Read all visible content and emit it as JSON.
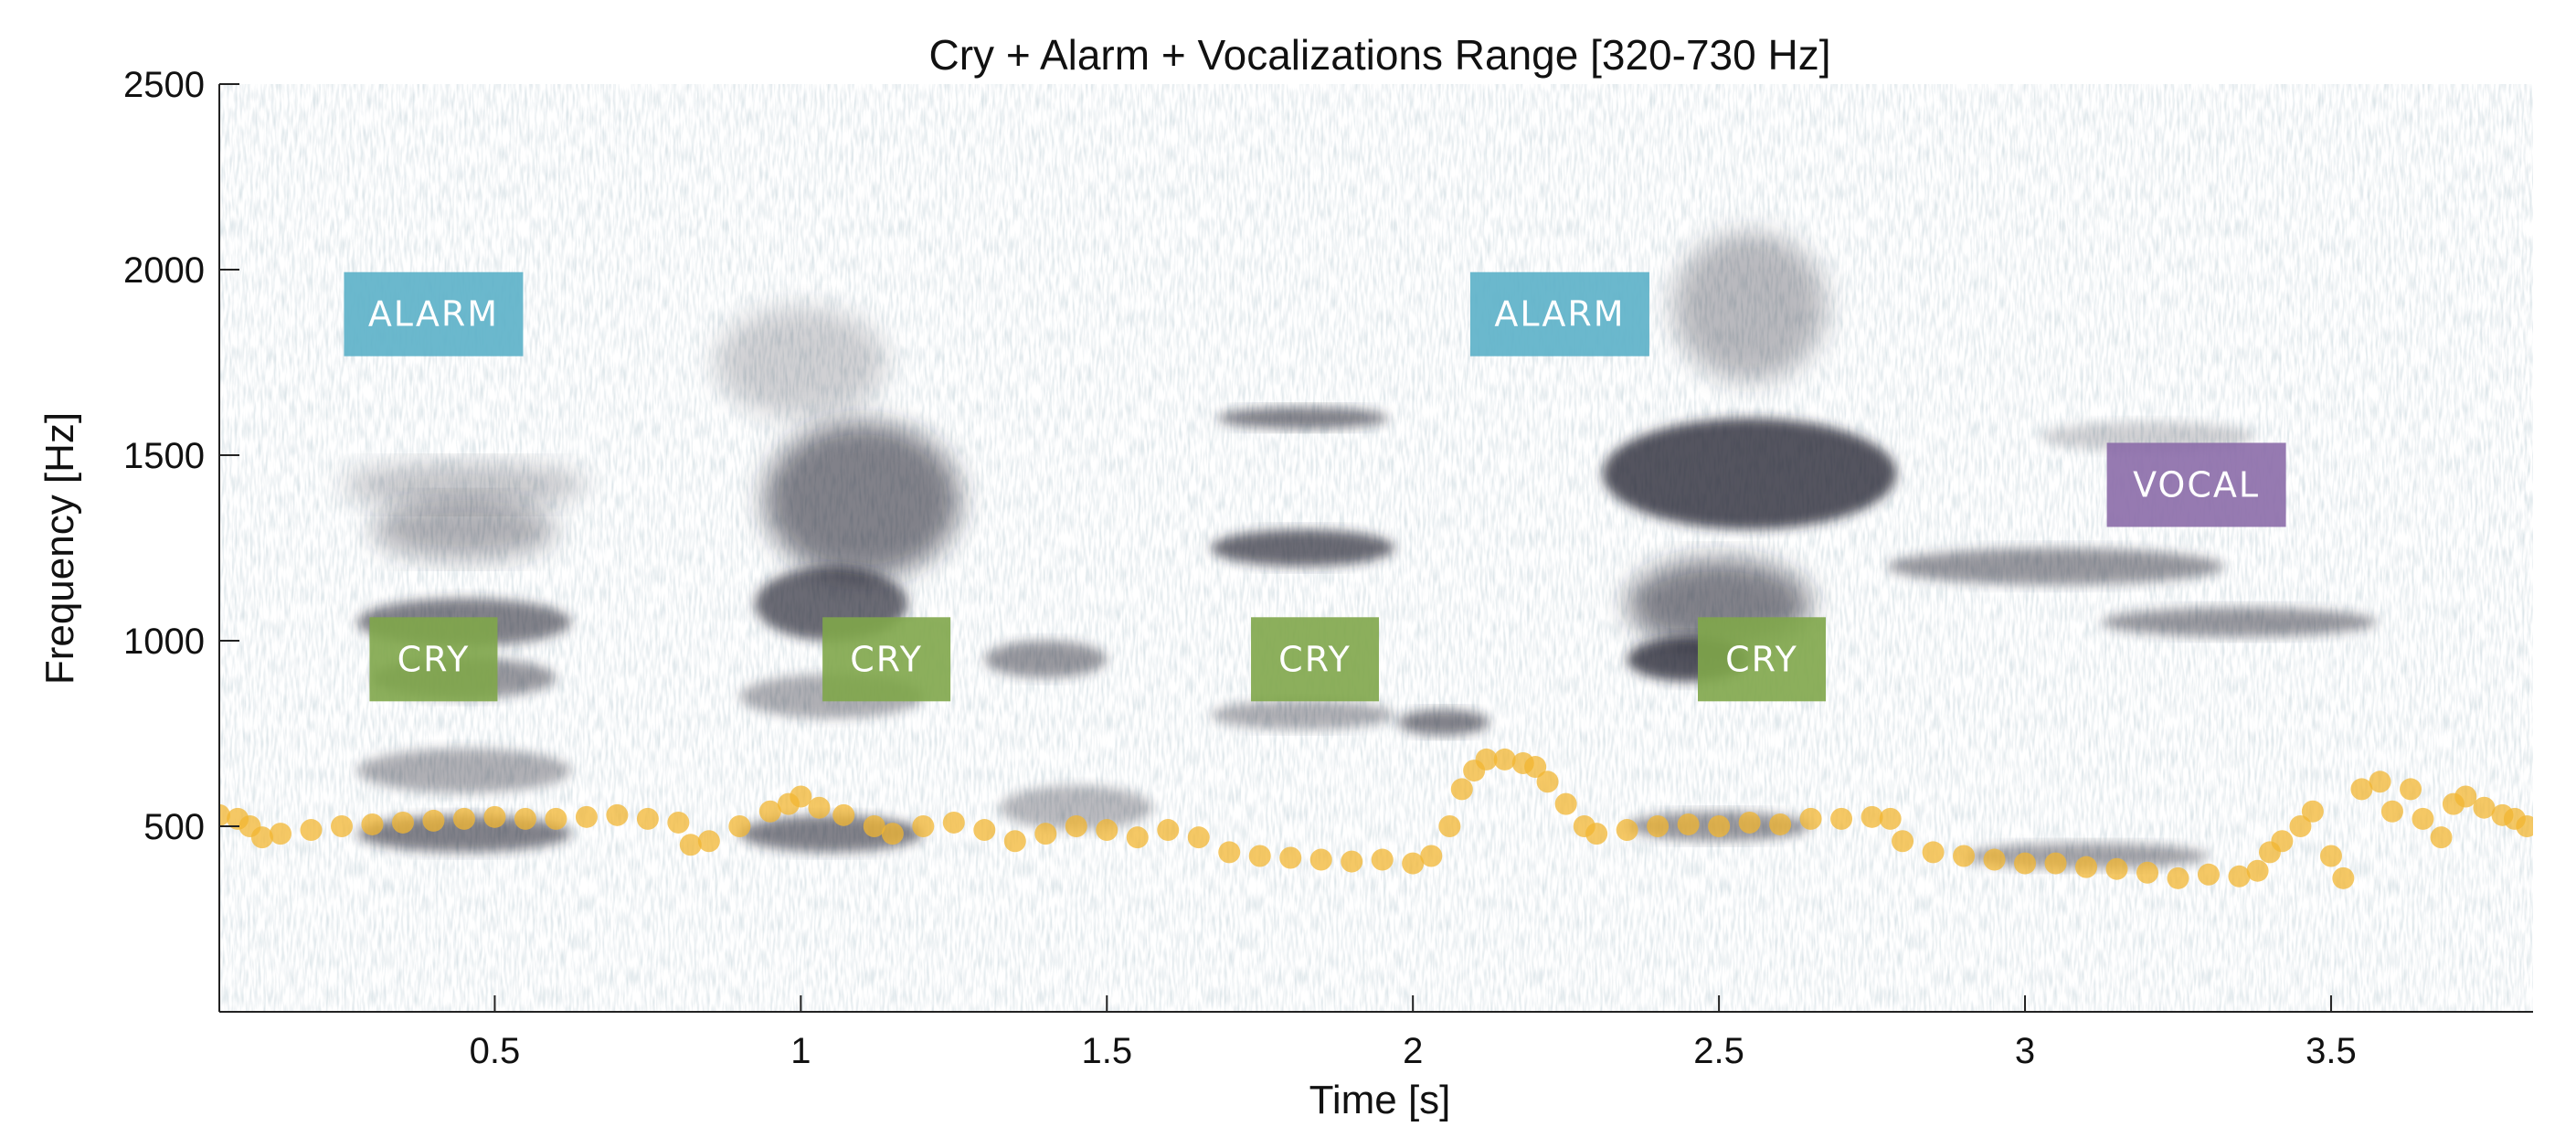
{
  "chart_data": {
    "type": "scatter",
    "title": "Cry + Alarm + Vocalizations Range [320-730 Hz]",
    "xlabel": "Time [s]",
    "ylabel": "Frequency [Hz]",
    "xlim": [
      0.05,
      3.83
    ],
    "ylim": [
      0,
      2500
    ],
    "x_ticks": [
      0.5,
      1,
      1.5,
      2,
      2.5,
      3,
      3.5
    ],
    "x_tick_labels": [
      "0.5",
      "1",
      "1.5",
      "2",
      "2.5",
      "3",
      "3.5"
    ],
    "y_ticks": [
      500,
      1000,
      1500,
      2000,
      2500
    ],
    "y_tick_labels": [
      "500",
      "1000",
      "1500",
      "2000",
      "2500"
    ],
    "background": "spectrogram (grayscale-blue)",
    "series": [
      {
        "color": "#f2b632",
        "points": [
          [
            0.05,
            530
          ],
          [
            0.08,
            520
          ],
          [
            0.1,
            500
          ],
          [
            0.12,
            470
          ],
          [
            0.15,
            480
          ],
          [
            0.2,
            490
          ],
          [
            0.25,
            500
          ],
          [
            0.3,
            505
          ],
          [
            0.35,
            510
          ],
          [
            0.4,
            515
          ],
          [
            0.45,
            520
          ],
          [
            0.5,
            525
          ],
          [
            0.55,
            520
          ],
          [
            0.6,
            520
          ],
          [
            0.65,
            525
          ],
          [
            0.7,
            530
          ],
          [
            0.75,
            520
          ],
          [
            0.8,
            510
          ],
          [
            0.82,
            450
          ],
          [
            0.85,
            460
          ],
          [
            0.9,
            500
          ],
          [
            0.95,
            540
          ],
          [
            0.98,
            560
          ],
          [
            1.0,
            580
          ],
          [
            1.03,
            550
          ],
          [
            1.07,
            530
          ],
          [
            1.12,
            500
          ],
          [
            1.15,
            480
          ],
          [
            1.2,
            500
          ],
          [
            1.25,
            510
          ],
          [
            1.3,
            490
          ],
          [
            1.35,
            460
          ],
          [
            1.4,
            480
          ],
          [
            1.45,
            500
          ],
          [
            1.5,
            490
          ],
          [
            1.55,
            470
          ],
          [
            1.6,
            490
          ],
          [
            1.65,
            470
          ],
          [
            1.7,
            430
          ],
          [
            1.75,
            420
          ],
          [
            1.8,
            415
          ],
          [
            1.85,
            410
          ],
          [
            1.9,
            405
          ],
          [
            1.95,
            410
          ],
          [
            2.0,
            400
          ],
          [
            2.03,
            420
          ],
          [
            2.06,
            500
          ],
          [
            2.08,
            600
          ],
          [
            2.1,
            650
          ],
          [
            2.12,
            680
          ],
          [
            2.15,
            680
          ],
          [
            2.18,
            670
          ],
          [
            2.2,
            660
          ],
          [
            2.22,
            620
          ],
          [
            2.25,
            560
          ],
          [
            2.28,
            500
          ],
          [
            2.3,
            480
          ],
          [
            2.35,
            490
          ],
          [
            2.4,
            500
          ],
          [
            2.45,
            505
          ],
          [
            2.5,
            500
          ],
          [
            2.55,
            510
          ],
          [
            2.6,
            505
          ],
          [
            2.65,
            520
          ],
          [
            2.7,
            520
          ],
          [
            2.75,
            525
          ],
          [
            2.78,
            520
          ],
          [
            2.8,
            460
          ],
          [
            2.85,
            430
          ],
          [
            2.9,
            420
          ],
          [
            2.95,
            410
          ],
          [
            3.0,
            400
          ],
          [
            3.05,
            400
          ],
          [
            3.1,
            390
          ],
          [
            3.15,
            385
          ],
          [
            3.2,
            375
          ],
          [
            3.25,
            360
          ],
          [
            3.3,
            370
          ],
          [
            3.35,
            365
          ],
          [
            3.38,
            380
          ],
          [
            3.4,
            430
          ],
          [
            3.42,
            460
          ],
          [
            3.45,
            500
          ],
          [
            3.47,
            540
          ],
          [
            3.5,
            420
          ],
          [
            3.52,
            360
          ],
          [
            3.55,
            600
          ],
          [
            3.58,
            620
          ],
          [
            3.6,
            540
          ],
          [
            3.63,
            600
          ],
          [
            3.65,
            520
          ],
          [
            3.68,
            470
          ],
          [
            3.7,
            560
          ],
          [
            3.72,
            580
          ],
          [
            3.75,
            550
          ],
          [
            3.78,
            530
          ],
          [
            3.8,
            520
          ],
          [
            3.82,
            500
          ]
        ]
      }
    ],
    "annotations": [
      {
        "text": "ALARM",
        "x": 0.4,
        "y": 1880,
        "color": "#5bb0c8"
      },
      {
        "text": "ALARM",
        "x": 2.24,
        "y": 1880,
        "color": "#5bb0c8"
      },
      {
        "text": "CRY",
        "x": 0.4,
        "y": 950,
        "color": "#7fa64a"
      },
      {
        "text": "CRY",
        "x": 1.14,
        "y": 950,
        "color": "#7fa64a"
      },
      {
        "text": "CRY",
        "x": 1.84,
        "y": 950,
        "color": "#7fa64a"
      },
      {
        "text": "CRY",
        "x": 2.57,
        "y": 950,
        "color": "#7fa64a"
      },
      {
        "text": "VOCAL",
        "x": 3.28,
        "y": 1420,
        "color": "#8b6ca8"
      }
    ]
  }
}
